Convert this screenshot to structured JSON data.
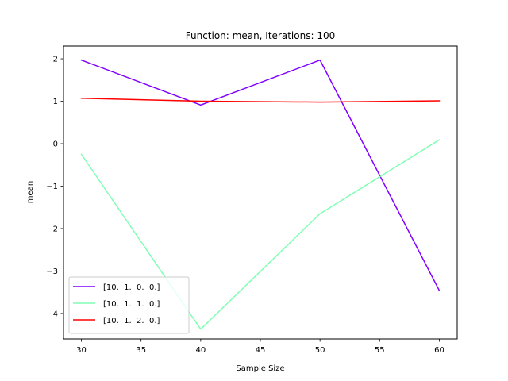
{
  "chart_data": {
    "type": "line",
    "title": "Function: mean, Iterations: 100",
    "xlabel": "Sample Size",
    "ylabel": "mean",
    "x": [
      30,
      40,
      50,
      60
    ],
    "xlim": [
      28.5,
      61.5
    ],
    "ylim": [
      -4.6,
      2.3
    ],
    "xticks": [
      30,
      35,
      40,
      45,
      50,
      55,
      60
    ],
    "yticks": [
      -4,
      -3,
      -2,
      -1,
      0,
      1,
      2
    ],
    "ytick_labels": [
      "−4",
      "−3",
      "−2",
      "−1",
      "0",
      "1",
      "2"
    ],
    "grid": false,
    "legend_position": "lower-left",
    "series": [
      {
        "name": "[10.  1.  0.  0.]",
        "values": [
          1.97,
          0.91,
          1.97,
          -3.46
        ],
        "color": "#8000ff"
      },
      {
        "name": "[10.  1.  1.  0.]",
        "values": [
          -0.25,
          -4.37,
          -1.65,
          0.09
        ],
        "color": "#80ffb4"
      },
      {
        "name": "[10.  1.  2.  0.]",
        "values": [
          1.07,
          1.0,
          0.98,
          1.01
        ],
        "color": "#ff0000"
      }
    ]
  }
}
